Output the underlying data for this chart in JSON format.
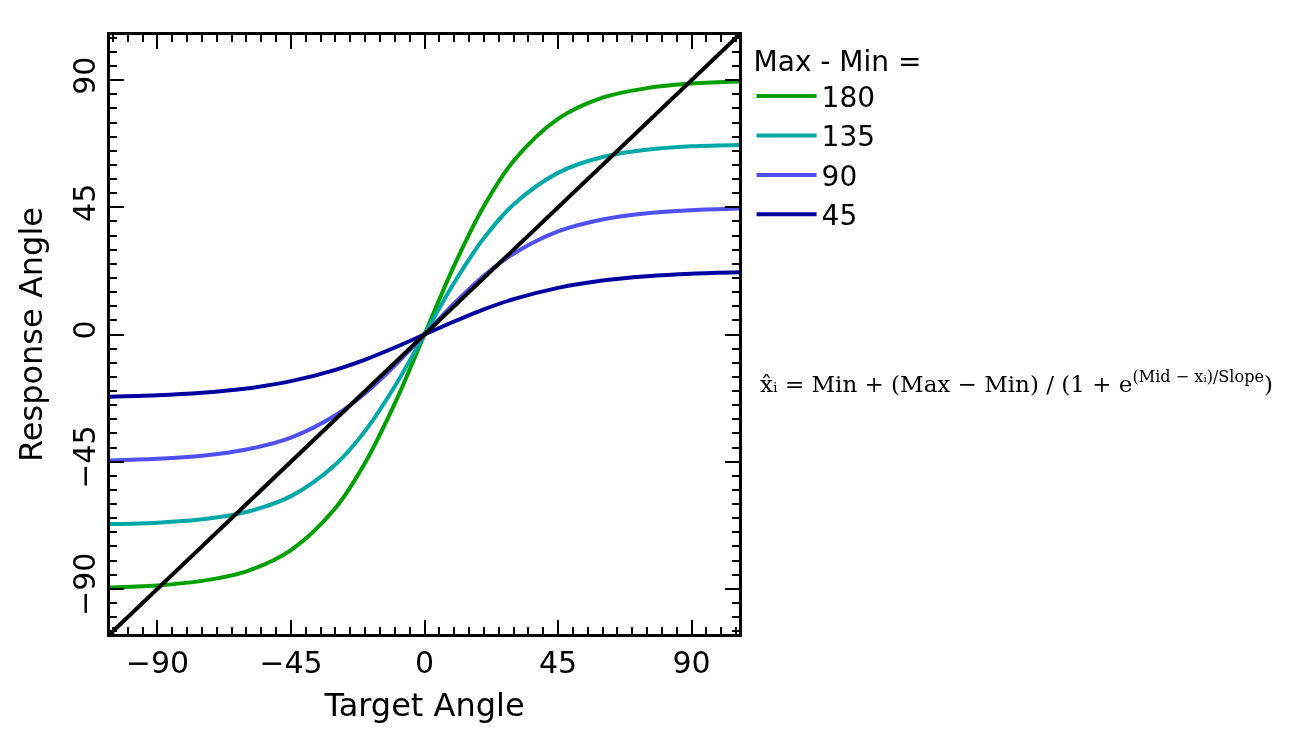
{
  "chart_data": {
    "type": "line",
    "xlabel": "Target Angle",
    "ylabel": "Response Angle",
    "legend_title": "Max - Min =",
    "x": [
      -106,
      -90,
      -75,
      -60,
      -45,
      -30,
      -20,
      -10,
      0,
      10,
      20,
      30,
      45,
      60,
      75,
      90,
      106
    ],
    "series": [
      {
        "name": "180",
        "color": "#00a000",
        "values": [
          -89.5,
          -88.8,
          -87.2,
          -83.8,
          -76.3,
          -61.4,
          -45.4,
          -24.4,
          0,
          24.4,
          45.4,
          61.4,
          76.3,
          83.8,
          87.2,
          88.8,
          89.5
        ]
      },
      {
        "name": "135",
        "color": "#00a8a8",
        "values": [
          -67.1,
          -66.6,
          -65.4,
          -62.8,
          -57.2,
          -46.0,
          -34.1,
          -18.3,
          0,
          18.3,
          34.1,
          46.0,
          57.2,
          62.8,
          65.4,
          66.6,
          67.1
        ]
      },
      {
        "name": "90",
        "color": "#5050f0",
        "values": [
          -44.6,
          -44.0,
          -42.9,
          -40.7,
          -36.5,
          -28.6,
          -20.8,
          -11.0,
          0,
          11.0,
          20.8,
          28.6,
          36.5,
          40.7,
          42.9,
          44.0,
          44.6
        ]
      },
      {
        "name": "45",
        "color": "#0000a0",
        "values": [
          -22.0,
          -21.5,
          -20.6,
          -19.1,
          -16.5,
          -12.5,
          -8.9,
          -4.6,
          0,
          4.6,
          8.9,
          12.5,
          16.5,
          19.1,
          20.6,
          21.5,
          22.0
        ]
      },
      {
        "color": "#000000",
        "x": [
          -106,
          106
        ],
        "values": [
          -106,
          106
        ]
      }
    ],
    "xlim": [
      -106,
      106
    ],
    "ylim": [
      -106,
      106
    ],
    "xticks": [
      -90,
      -45,
      0,
      45,
      90
    ],
    "yticks": [
      -90,
      -45,
      0,
      45,
      90
    ],
    "legend": "top right",
    "line_style": "solid",
    "marker": "none",
    "annotations": [
      "x̂ᵢ = Min + (Max − Min) / (1 + e$^{(Mid − xᵢ)/Slope}$)"
    ]
  }
}
